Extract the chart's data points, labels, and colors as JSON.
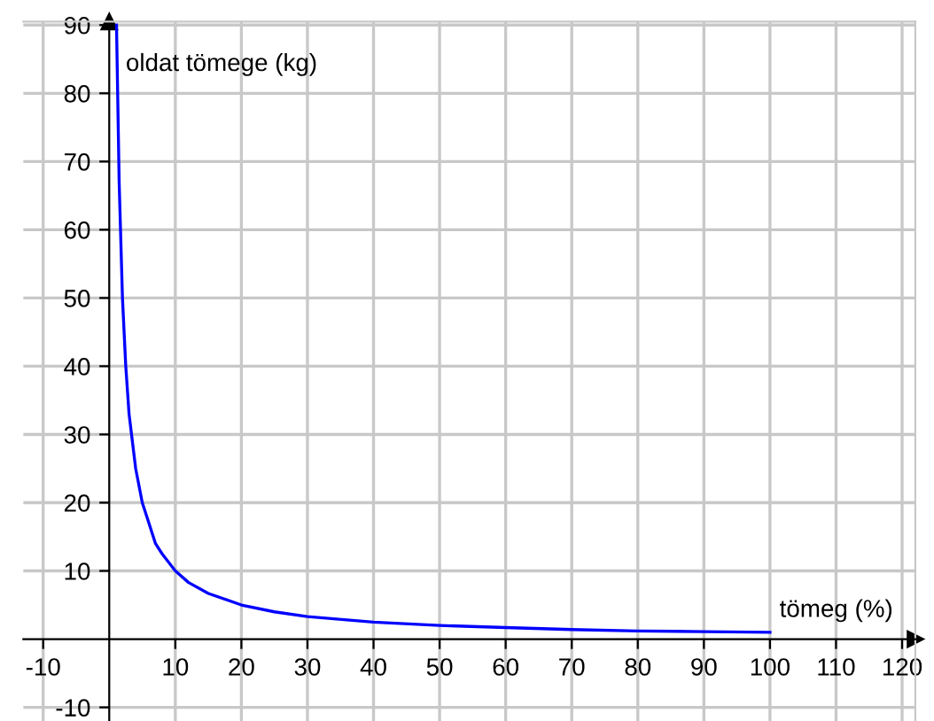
{
  "chart_data": {
    "type": "line",
    "xlabel": "tömeg (%)",
    "ylabel": "oldat tömege (kg)",
    "x": [
      1.1,
      1.5,
      2,
      2.5,
      3,
      4,
      5,
      6,
      7,
      8,
      10,
      12,
      15,
      20,
      25,
      30,
      40,
      50,
      60,
      70,
      80,
      90,
      100
    ],
    "series": [
      {
        "color": "#0000ff",
        "values": [
          90,
          67,
          50,
          40,
          33,
          25,
          20,
          17,
          14,
          12.5,
          10,
          8.3,
          6.7,
          5,
          4,
          3.3,
          2.5,
          2,
          1.7,
          1.4,
          1.2,
          1.1,
          1
        ]
      }
    ],
    "xlim": [
      -13,
      122
    ],
    "ylim": [
      -12,
      90.5
    ],
    "xticks": [
      -10,
      10,
      20,
      30,
      40,
      50,
      60,
      70,
      80,
      90,
      100,
      110,
      120
    ],
    "yticks": [
      -10,
      10,
      20,
      30,
      40,
      50,
      60,
      70,
      80,
      90
    ],
    "grid": true,
    "legend": false,
    "marker": "none",
    "line_style": "solid"
  }
}
